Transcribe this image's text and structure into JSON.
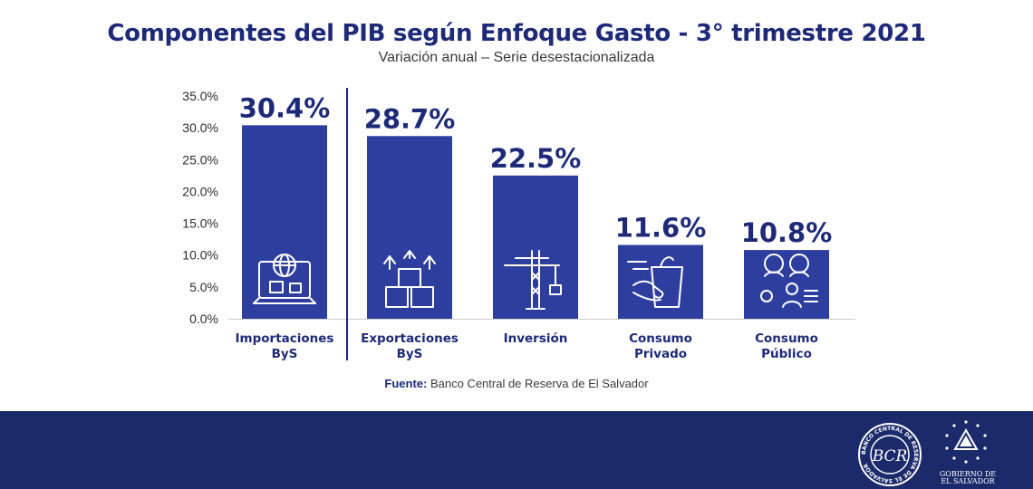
{
  "title": "Componentes del PIB según Enfoque Gasto - 3° trimestre 2021",
  "subtitle": "Variación anual – Serie desestacionalizada",
  "source": {
    "label": "Fuente:",
    "text": " Banco Central de Reserva de El Salvador"
  },
  "footer": {
    "bcr_logo_text": "BCR",
    "bcr_ring_text": "BANCO CENTRAL DE RESERVA DE EL SALVADOR",
    "gob_line1": "GOBIERNO DE",
    "gob_line2": "EL SALVADOR"
  },
  "colors": {
    "bar": "#2e3e9e",
    "title": "#1e2a78",
    "footer": "#1b2a6b",
    "label": "#1e2a78"
  },
  "chart_data": {
    "type": "bar",
    "categories": [
      [
        "Importaciones",
        "ByS"
      ],
      [
        "Exportaciones",
        "ByS"
      ],
      [
        "Inversión"
      ],
      [
        "Consumo",
        "Privado"
      ],
      [
        "Consumo",
        "Público"
      ]
    ],
    "values": [
      30.4,
      28.7,
      22.5,
      11.6,
      10.8
    ],
    "value_labels": [
      "30.4%",
      "28.7%",
      "22.5%",
      "11.6%",
      "10.8%"
    ],
    "icons": [
      "computer-globe-icon",
      "export-boxes-icon",
      "crane-icon",
      "grocery-bag-icon",
      "people-icon"
    ],
    "yticks": [
      "0.0%",
      "5.0%",
      "10.0%",
      "15.0%",
      "20.0%",
      "25.0%",
      "30.0%",
      "35.0%"
    ],
    "ylim": [
      0,
      35
    ],
    "grid": false,
    "legend": "none"
  }
}
